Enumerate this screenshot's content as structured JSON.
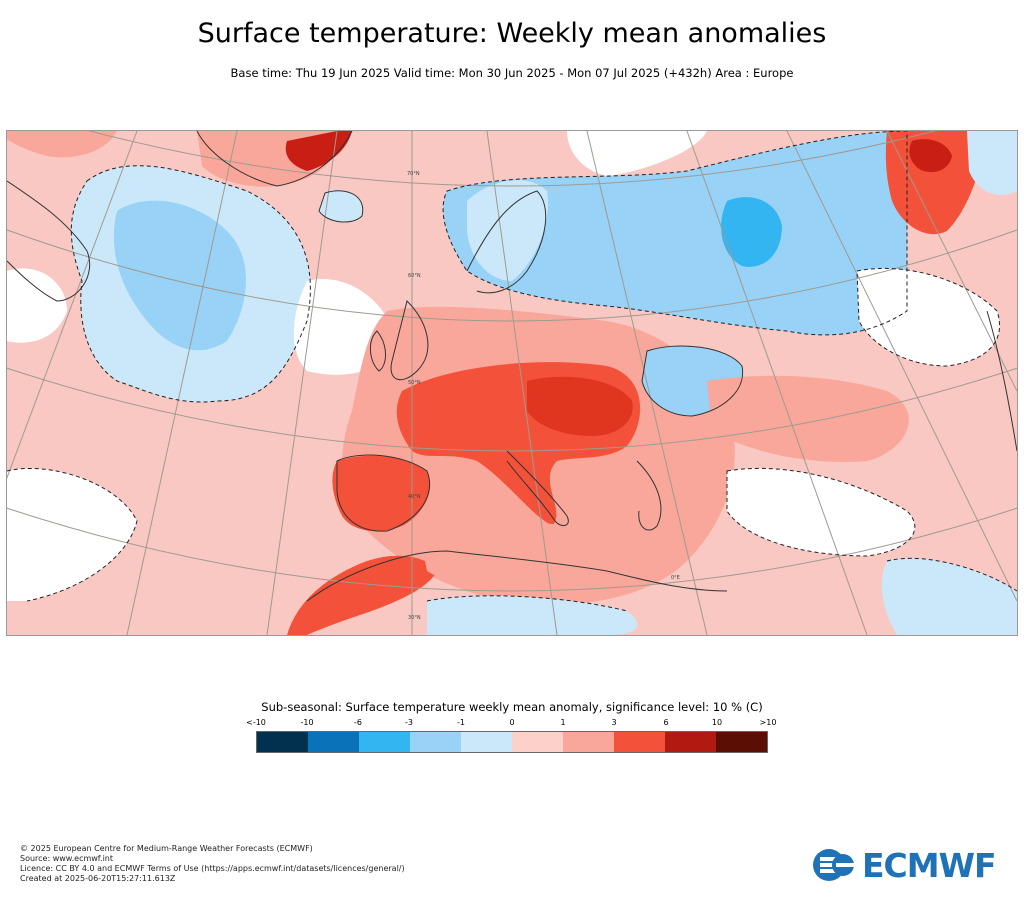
{
  "title": "Surface temperature: Weekly mean anomalies",
  "subtitle": "Base time: Thu 19 Jun 2025 Valid time: Mon 30 Jun 2025 - Mon 07 Jul 2025 (+432h) Area : Europe",
  "map": {
    "latitude_labels": [
      "70°N",
      "60°N",
      "50°N",
      "40°N",
      "30°N"
    ],
    "longitude_labels": [
      "0°E"
    ],
    "colors": {
      "ocean_base": "#f9c8c2",
      "land_base": "#f9a79a",
      "strong_warm": "#f4513a",
      "very_warm": "#c81e14",
      "extreme_warm": "#5c0e06",
      "neutral": "#ffffff",
      "slight_cold": "#cbe8fb",
      "cold": "#98d2f7",
      "colder": "#33b5f2",
      "grid": "#a09a90",
      "coast": "#333333"
    }
  },
  "legend": {
    "title": "Sub-seasonal: Surface temperature weekly mean anomaly, significance level: 10 % (C)",
    "tick_labels": [
      "<-10",
      "-10",
      "-6",
      "-3",
      "-1",
      "0",
      "1",
      "3",
      "6",
      "10",
      ">10"
    ],
    "colors": [
      "#02304f",
      "#0a72b8",
      "#33b5f2",
      "#98d2f7",
      "#cbe8fb",
      "#fdd0ca",
      "#f9a79a",
      "#f4513a",
      "#b11a10",
      "#5a0e04"
    ]
  },
  "footer": {
    "line1": "© 2025 European Centre for Medium-Range Weather Forecasts (ECMWF)",
    "line2": "Source: www.ecmwf.int",
    "line3": "Licence: CC BY 4.0 and ECMWF Terms of Use (https://apps.ecmwf.int/datasets/licences/general/)",
    "line4": "Created at 2025-06-20T15:27:11.613Z"
  },
  "logo": {
    "text": "ECMWF",
    "color": "#1f72b8"
  }
}
